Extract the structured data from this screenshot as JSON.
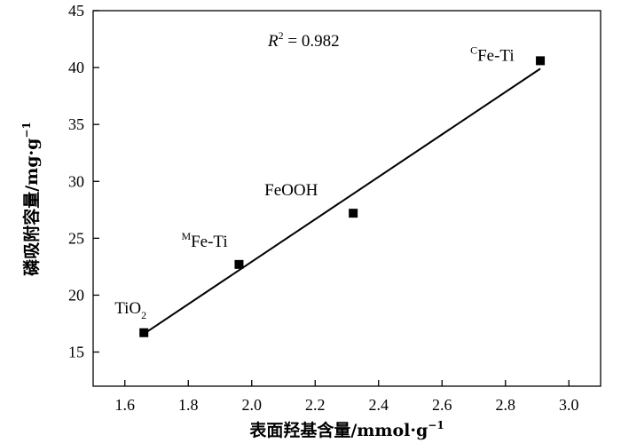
{
  "chart_data": {
    "type": "scatter",
    "xlabel_main": "表面羟基含量/mmol·g",
    "xlabel_sup": "−1",
    "ylabel_main": "磷吸附容量/mg·g",
    "ylabel_sup": "−1",
    "xlim": [
      1.5,
      3.1
    ],
    "ylim": [
      12,
      45
    ],
    "xticks": [
      1.6,
      1.8,
      2.0,
      2.2,
      2.4,
      2.6,
      2.8,
      3.0
    ],
    "xtick_labels": [
      "1.6",
      "1.8",
      "2.0",
      "2.2",
      "2.4",
      "2.6",
      "2.8",
      "3.0"
    ],
    "yticks": [
      15,
      20,
      25,
      30,
      35,
      40,
      45
    ],
    "ytick_labels": [
      "15",
      "20",
      "25",
      "30",
      "35",
      "40",
      "45"
    ],
    "grid": false,
    "points": [
      {
        "x": 1.66,
        "y": 16.7,
        "label_main": "TiO",
        "label_sub": "2",
        "label_sup": ""
      },
      {
        "x": 1.96,
        "y": 22.7,
        "label_main": "Fe-Ti",
        "label_sub": "",
        "label_sup": "M"
      },
      {
        "x": 2.32,
        "y": 27.2,
        "label_main": "FeOOH",
        "label_sub": "",
        "label_sup": ""
      },
      {
        "x": 2.91,
        "y": 40.6,
        "label_main": "Fe-Ti",
        "label_sub": "",
        "label_sup": "C"
      }
    ],
    "fit_line": {
      "x": [
        1.66,
        2.91
      ],
      "y": [
        16.6,
        39.9
      ]
    },
    "annotation": {
      "r_label": "R",
      "r_sup": "2",
      "r_value_text": " = 0.982"
    }
  }
}
